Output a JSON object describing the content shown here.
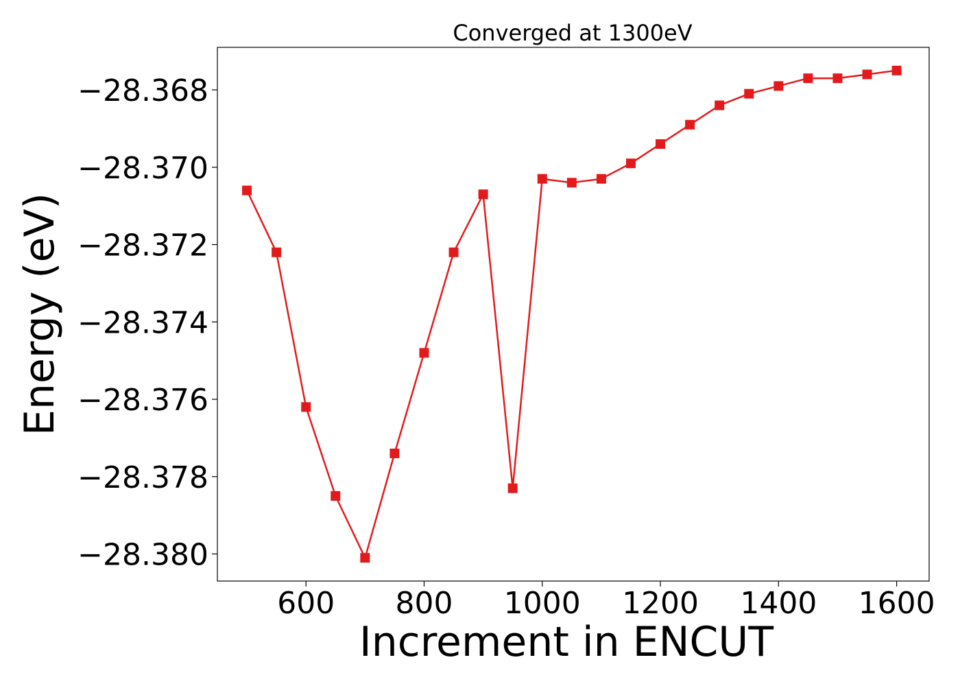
{
  "chart_data": {
    "type": "line",
    "title": "Converged at 1300eV",
    "xlabel": "Increment in ENCUT",
    "ylabel": "Energy (eV)",
    "xlim": [
      450,
      1655
    ],
    "ylim": [
      -28.3807,
      -28.3669
    ],
    "xticks": [
      600,
      800,
      1000,
      1200,
      1400,
      1600
    ],
    "xtick_labels": [
      "600",
      "800",
      "1000",
      "1200",
      "1400",
      "1600"
    ],
    "yticks": [
      -28.368,
      -28.37,
      -28.372,
      -28.374,
      -28.376,
      -28.378,
      -28.38
    ],
    "ytick_labels": [
      "−28.368",
      "−28.370",
      "−28.372",
      "−28.374",
      "−28.376",
      "−28.378",
      "−28.380"
    ],
    "grid": false,
    "series": [
      {
        "color": "#e31a1c",
        "marker": "square",
        "x": [
          500,
          550,
          600,
          650,
          700,
          750,
          800,
          850,
          900,
          950,
          1000,
          1050,
          1100,
          1150,
          1200,
          1250,
          1300,
          1350,
          1400,
          1450,
          1500,
          1550,
          1600
        ],
        "y": [
          -28.3706,
          -28.3722,
          -28.3762,
          -28.3785,
          -28.3801,
          -28.3774,
          -28.3748,
          -28.3722,
          -28.3707,
          -28.3783,
          -28.3703,
          -28.3704,
          -28.3703,
          -28.3699,
          -28.3694,
          -28.3689,
          -28.3684,
          -28.3681,
          -28.3679,
          -28.3677,
          -28.3677,
          -28.3676,
          -28.3675
        ]
      }
    ]
  }
}
